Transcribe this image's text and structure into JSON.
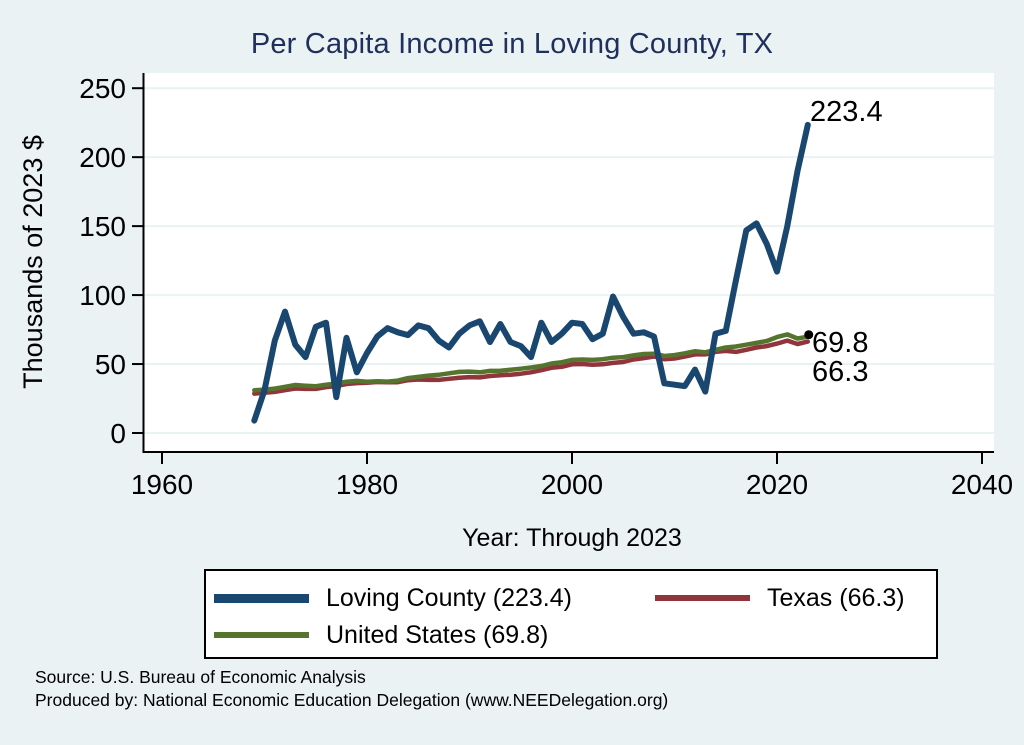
{
  "title": "Per Capita Income in Loving County, TX",
  "title_color": "#20305C",
  "chart_data": {
    "type": "line",
    "title": "Per Capita Income in Loving County, TX",
    "xlabel": "Year: Through 2023",
    "ylabel": "Thousands of 2023 $",
    "x_ticks": [
      1960,
      1980,
      2000,
      2020,
      2040
    ],
    "y_ticks": [
      0,
      50,
      100,
      150,
      200,
      250
    ],
    "xlim": [
      1958,
      2041
    ],
    "ylim": [
      0,
      250
    ],
    "grid": true,
    "legend_position": "bottom",
    "plot_background": "#FFFFFF",
    "page_background": "#EAF2F3",
    "gridline_color": "#EAF2F3",
    "x": [
      1969,
      1970,
      1971,
      1972,
      1973,
      1974,
      1975,
      1976,
      1977,
      1978,
      1979,
      1980,
      1981,
      1982,
      1983,
      1984,
      1985,
      1986,
      1987,
      1988,
      1989,
      1990,
      1991,
      1992,
      1993,
      1994,
      1995,
      1996,
      1997,
      1998,
      1999,
      2000,
      2001,
      2002,
      2003,
      2004,
      2005,
      2006,
      2007,
      2008,
      2009,
      2010,
      2011,
      2012,
      2013,
      2014,
      2015,
      2016,
      2017,
      2018,
      2019,
      2020,
      2021,
      2022,
      2023
    ],
    "series": [
      {
        "name": "Loving County",
        "color": "#1A476F",
        "line_width": 6,
        "end_label": "223.4",
        "values": [
          9,
          31,
          67,
          88,
          64,
          55,
          77,
          80,
          26,
          69,
          44,
          58,
          70,
          76,
          73,
          71,
          78,
          76,
          67,
          62,
          72,
          78,
          81,
          66,
          79,
          66,
          63,
          55,
          80,
          66,
          72,
          80,
          79,
          68,
          72,
          99,
          84,
          72,
          73,
          70,
          36,
          35,
          34,
          46,
          30,
          72,
          74,
          111,
          147,
          152,
          137,
          117,
          150,
          190,
          223.4
        ]
      },
      {
        "name": "Texas",
        "color": "#90353B",
        "line_width": 4.5,
        "end_label": "66.3",
        "values": [
          28.6,
          29.2,
          29.8,
          31,
          32.3,
          32,
          32,
          33.2,
          34,
          35.5,
          36.2,
          36.5,
          37,
          36.8,
          36.8,
          38.3,
          38.8,
          38.5,
          38.5,
          39.3,
          40,
          40.5,
          40.3,
          41.3,
          41.8,
          42.3,
          43,
          44,
          45.5,
          47.3,
          48,
          49.8,
          50,
          49.5,
          49.8,
          50.8,
          51.5,
          53.3,
          54.3,
          55.5,
          53.5,
          54,
          55.5,
          57,
          57,
          58.8,
          59.5,
          58.8,
          60.3,
          62,
          63,
          64.8,
          67,
          64.5,
          66.3
        ]
      },
      {
        "name": "United States",
        "color": "#55752F",
        "line_width": 4.5,
        "end_label": "69.8",
        "end_marker": "dot",
        "values": [
          31,
          31.5,
          32.2,
          33.5,
          34.8,
          34.3,
          33.9,
          35,
          35.9,
          37.2,
          37.8,
          37.2,
          37.5,
          37.3,
          38,
          39.8,
          40.7,
          41.6,
          42.2,
          43.3,
          44.3,
          44.5,
          44,
          45,
          45.2,
          45.8,
          46.6,
          47.5,
          48.6,
          50.4,
          51.3,
          53,
          53.3,
          53,
          53.5,
          54.6,
          55,
          56.3,
          57.3,
          57.5,
          55.8,
          56.5,
          57.8,
          59.3,
          58.5,
          60.3,
          62,
          62.7,
          64,
          65.3,
          66.7,
          69.5,
          71.5,
          68.5,
          69.8
        ]
      }
    ]
  },
  "legend": {
    "items": [
      {
        "label": "Loving County (223.4)"
      },
      {
        "label": "Texas (66.3)"
      },
      {
        "label": "United States (69.8)"
      }
    ]
  },
  "footer": {
    "source": "Source: U.S. Bureau of Economic Analysis",
    "produced": "Produced by: National Economic Education Delegation (www.NEEDelegation.org)"
  }
}
